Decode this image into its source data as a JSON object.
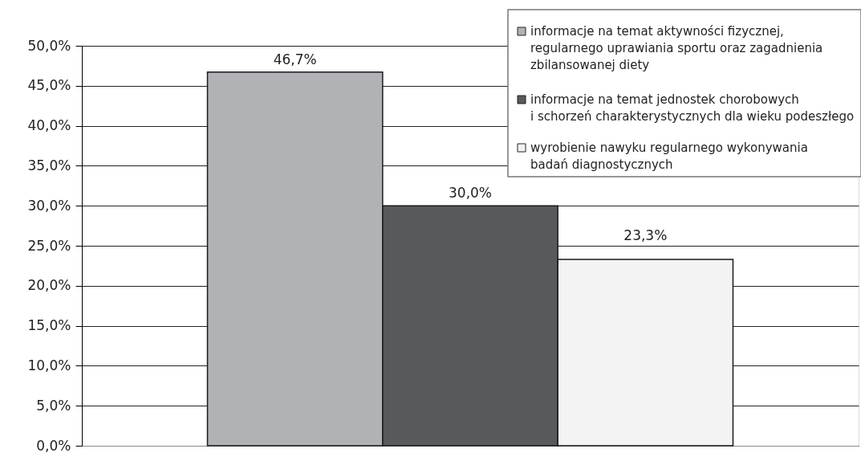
{
  "chart_data": {
    "type": "bar",
    "categories": [
      null
    ],
    "series": [
      {
        "name": "informacje na temat aktywności fizycznej,\nregularnego uprawiania sportu oraz zagadnienia\nzbilansowanej diety",
        "color": "#b1b2b6",
        "values": [
          46.7
        ],
        "value_labels": [
          "46,7%"
        ]
      },
      {
        "name": "informacje na temat jednostek chorobowych\ni schorzeń charakterystycznych dla wieku podeszłego",
        "color": "#58595b",
        "values": [
          30.0
        ],
        "value_labels": [
          "30,0%"
        ]
      },
      {
        "name": "wyrobienie nawyku regularnego wykonywania\nbadań diagnostycznych",
        "color": "#f3f3f3",
        "values": [
          23.3
        ],
        "value_labels": [
          "23,3%"
        ]
      }
    ],
    "ylim": [
      0,
      50
    ],
    "yticks": [
      {
        "value": 0,
        "label": "0,0%"
      },
      {
        "value": 5,
        "label": "5,0%"
      },
      {
        "value": 10,
        "label": "10,0%"
      },
      {
        "value": 15,
        "label": "15,0%"
      },
      {
        "value": 20,
        "label": "20,0%"
      },
      {
        "value": 25,
        "label": "25,0%"
      },
      {
        "value": 30,
        "label": "30,0%"
      },
      {
        "value": 35,
        "label": "35,0%"
      },
      {
        "value": 40,
        "label": "40,0%"
      },
      {
        "value": 45,
        "label": "45,0%"
      },
      {
        "value": 50,
        "label": "50,0%"
      }
    ],
    "grid": "y",
    "legend": "top right",
    "tick_labels": "y"
  }
}
